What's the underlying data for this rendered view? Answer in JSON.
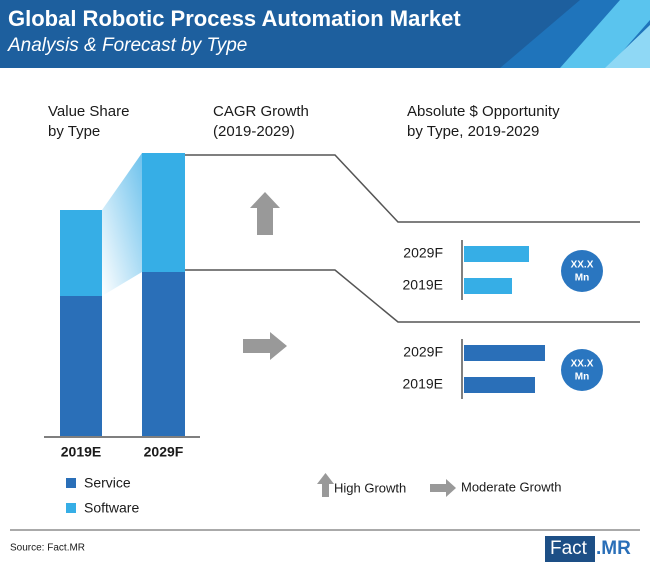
{
  "header": {
    "title": "Global Robotic Process Automation Market",
    "subtitle": "Analysis & Forecast by Type"
  },
  "value_share": {
    "title_lines": [
      "Value Share",
      "by Type"
    ],
    "categories": [
      "2019E",
      "2029F"
    ],
    "series": [
      {
        "name": "Service",
        "color": "#2a6fb8",
        "values": [
          140,
          164
        ]
      },
      {
        "name": "Software",
        "color": "#36aee6",
        "values": [
          86,
          119
        ]
      }
    ]
  },
  "cagr": {
    "title_lines": [
      "CAGR Growth",
      "(2019-2029)"
    ]
  },
  "opportunity": {
    "title_lines": [
      "Absolute $ Opportunity",
      "by Type, 2019-2029"
    ],
    "groups": [
      {
        "color": "#36aee6",
        "categories": [
          "2029F",
          "2019E"
        ],
        "values": [
          65,
          48
        ],
        "label_lines": [
          "XX.X",
          "Mn"
        ]
      },
      {
        "color": "#2a6fb8",
        "categories": [
          "2029F",
          "2019E"
        ],
        "values": [
          81,
          71
        ],
        "label_lines": [
          "XX.X",
          "Mn"
        ]
      }
    ]
  },
  "growth_legend": [
    "High Growth",
    "Moderate Growth"
  ],
  "source": "Source: Fact.MR",
  "logo": [
    "Fact",
    ".MR"
  ]
}
